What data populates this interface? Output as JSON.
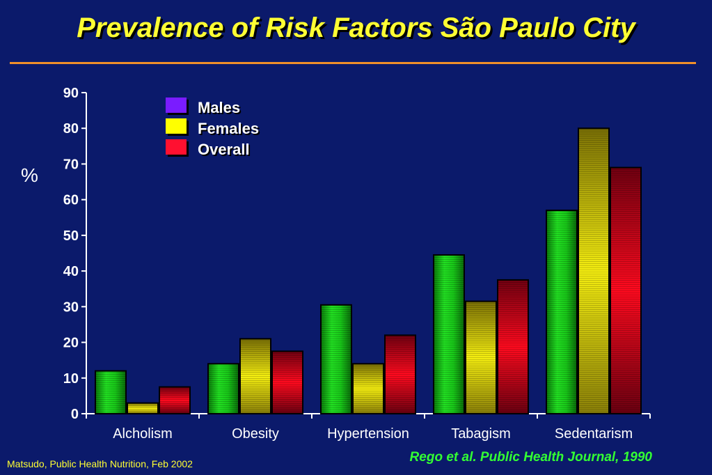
{
  "slide": {
    "title": "Prevalence of Risk Factors São Paulo City",
    "citation": "Rego et al. Public Health Journal, 1990",
    "footer": "Matsudo, Public Health Nutrition, Feb 2002"
  },
  "colors": {
    "background": "#0b1a6b",
    "title": "#ffff33",
    "rule": "#f0902a",
    "citation": "#33ff33",
    "legend_males": "#7a1cff",
    "legend_females": "#ffff00",
    "legend_overall": "#ff1030"
  },
  "chart_data": {
    "type": "bar",
    "title": "Prevalence of Risk Factors São Paulo City",
    "xlabel": "",
    "ylabel": "%",
    "ylim": [
      0,
      90
    ],
    "yticks": [
      0,
      10,
      20,
      30,
      40,
      50,
      60,
      70,
      80,
      90
    ],
    "grid": false,
    "legend_position": "top-left",
    "categories": [
      "Alcholism",
      "Obesity",
      "Hypertension",
      "Tabagism",
      "Sedentarism"
    ],
    "series": [
      {
        "name": "Males",
        "values": [
          12,
          14,
          30.5,
          44.5,
          57
        ],
        "color": "green"
      },
      {
        "name": "Females",
        "values": [
          3,
          21,
          14,
          31.5,
          80
        ],
        "color": "yellow"
      },
      {
        "name": "Overall",
        "values": [
          7.5,
          17.5,
          22,
          37.5,
          69
        ],
        "color": "red"
      }
    ]
  }
}
